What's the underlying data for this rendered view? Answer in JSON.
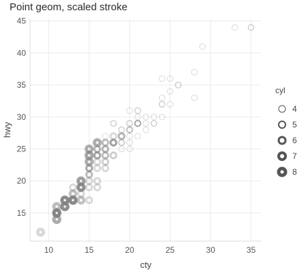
{
  "chart_data": {
    "type": "scatter",
    "title": "Point geom, scaled stroke",
    "xlabel": "cty",
    "ylabel": "hwy",
    "xlim": [
      7.7,
      36.3
    ],
    "ylim": [
      10.6,
      45.4
    ],
    "xticks": [
      10,
      15,
      20,
      25,
      30,
      35
    ],
    "yticks": [
      15,
      20,
      25,
      30,
      35,
      40,
      45
    ],
    "grid": true,
    "legend": {
      "title": "cyl",
      "position": "right",
      "entries": [
        "4",
        "5",
        "6",
        "7",
        "8"
      ]
    },
    "point_color": "#808080",
    "series": [
      {
        "name": "4",
        "points": [
          [
            18,
            29
          ],
          [
            21,
            29
          ],
          [
            20,
            31
          ],
          [
            21,
            30
          ],
          [
            18,
            26
          ],
          [
            18,
            29
          ],
          [
            19,
            27
          ],
          [
            18,
            26
          ],
          [
            21,
            29
          ],
          [
            19,
            26
          ],
          [
            21,
            31
          ],
          [
            19,
            28
          ],
          [
            22,
            29
          ],
          [
            20,
            26
          ],
          [
            28,
            33
          ],
          [
            24,
            32
          ],
          [
            25,
            32
          ],
          [
            23,
            29
          ],
          [
            24,
            32
          ],
          [
            26,
            35
          ],
          [
            25,
            34
          ],
          [
            24,
            36
          ],
          [
            21,
            29
          ],
          [
            22,
            30
          ],
          [
            26,
            35
          ],
          [
            28,
            37
          ],
          [
            29,
            41
          ],
          [
            24,
            33
          ],
          [
            25,
            36
          ],
          [
            33,
            44
          ],
          [
            35,
            44
          ],
          [
            35,
            44
          ],
          [
            17,
            25
          ],
          [
            16,
            24
          ],
          [
            17,
            27
          ],
          [
            19,
            26
          ],
          [
            20,
            28
          ],
          [
            21,
            31
          ],
          [
            23,
            29
          ],
          [
            24,
            30
          ],
          [
            21,
            27
          ],
          [
            20,
            27
          ],
          [
            23,
            30
          ],
          [
            20,
            25
          ],
          [
            15,
            24
          ],
          [
            19,
            25
          ],
          [
            20,
            28
          ],
          [
            17,
            23
          ],
          [
            18,
            24
          ],
          [
            22,
            28
          ],
          [
            19,
            26
          ],
          [
            19,
            28
          ],
          [
            16,
            25
          ]
        ]
      },
      {
        "name": "5",
        "points": [
          [
            21,
            29
          ],
          [
            21,
            29
          ],
          [
            20,
            28
          ],
          [
            20,
            29
          ]
        ]
      },
      {
        "name": "6",
        "points": [
          [
            16,
            26
          ],
          [
            17,
            25
          ],
          [
            15,
            25
          ],
          [
            15,
            23
          ],
          [
            16,
            24
          ],
          [
            18,
            26
          ],
          [
            16,
            25
          ],
          [
            17,
            24
          ],
          [
            15,
            22
          ],
          [
            15,
            21
          ],
          [
            13,
            19
          ],
          [
            14,
            20
          ],
          [
            15,
            22
          ],
          [
            16,
            24
          ],
          [
            17,
            25
          ],
          [
            18,
            26
          ],
          [
            19,
            27
          ],
          [
            17,
            26
          ],
          [
            16,
            24
          ],
          [
            14,
            19
          ],
          [
            15,
            22
          ],
          [
            17,
            24
          ],
          [
            16,
            23
          ],
          [
            15,
            20
          ],
          [
            18,
            26
          ],
          [
            19,
            27
          ],
          [
            16,
            25
          ],
          [
            17,
            26
          ],
          [
            18,
            27
          ],
          [
            14,
            18
          ],
          [
            13,
            18
          ],
          [
            15,
            21
          ],
          [
            16,
            22
          ],
          [
            17,
            23
          ],
          [
            18,
            24
          ],
          [
            15,
            17
          ],
          [
            16,
            19
          ],
          [
            14,
            17
          ],
          [
            15,
            19
          ],
          [
            11,
            15
          ],
          [
            12,
            17
          ],
          [
            13,
            17
          ],
          [
            14,
            19
          ],
          [
            16,
            20
          ],
          [
            17,
            22
          ]
        ]
      },
      {
        "name": "8",
        "points": [
          [
            16,
            26
          ],
          [
            15,
            25
          ],
          [
            14,
            20
          ],
          [
            11,
            15
          ],
          [
            14,
            20
          ],
          [
            13,
            17
          ],
          [
            12,
            17
          ],
          [
            16,
            26
          ],
          [
            15,
            23
          ],
          [
            14,
            20
          ],
          [
            11,
            15
          ],
          [
            12,
            17
          ],
          [
            12,
            16
          ],
          [
            11,
            14
          ],
          [
            11,
            15
          ],
          [
            9,
            12
          ],
          [
            12,
            16
          ],
          [
            13,
            17
          ],
          [
            14,
            19
          ],
          [
            13,
            18
          ],
          [
            12,
            17
          ],
          [
            11,
            16
          ],
          [
            15,
            24
          ],
          [
            12,
            17
          ],
          [
            13,
            17
          ],
          [
            12,
            16
          ],
          [
            11,
            15
          ],
          [
            12,
            17
          ],
          [
            13,
            17
          ],
          [
            14,
            19
          ],
          [
            13,
            17
          ],
          [
            12,
            16
          ],
          [
            11,
            15
          ],
          [
            12,
            17
          ],
          [
            14,
            19
          ],
          [
            11,
            14
          ],
          [
            12,
            16
          ],
          [
            13,
            17
          ],
          [
            15,
            23
          ],
          [
            15,
            25
          ],
          [
            15,
            24
          ],
          [
            11,
            14
          ],
          [
            11,
            15
          ],
          [
            12,
            16
          ],
          [
            15,
            24
          ],
          [
            14,
            19
          ],
          [
            11,
            16
          ],
          [
            14,
            17
          ],
          [
            11,
            15
          ]
        ]
      }
    ]
  }
}
